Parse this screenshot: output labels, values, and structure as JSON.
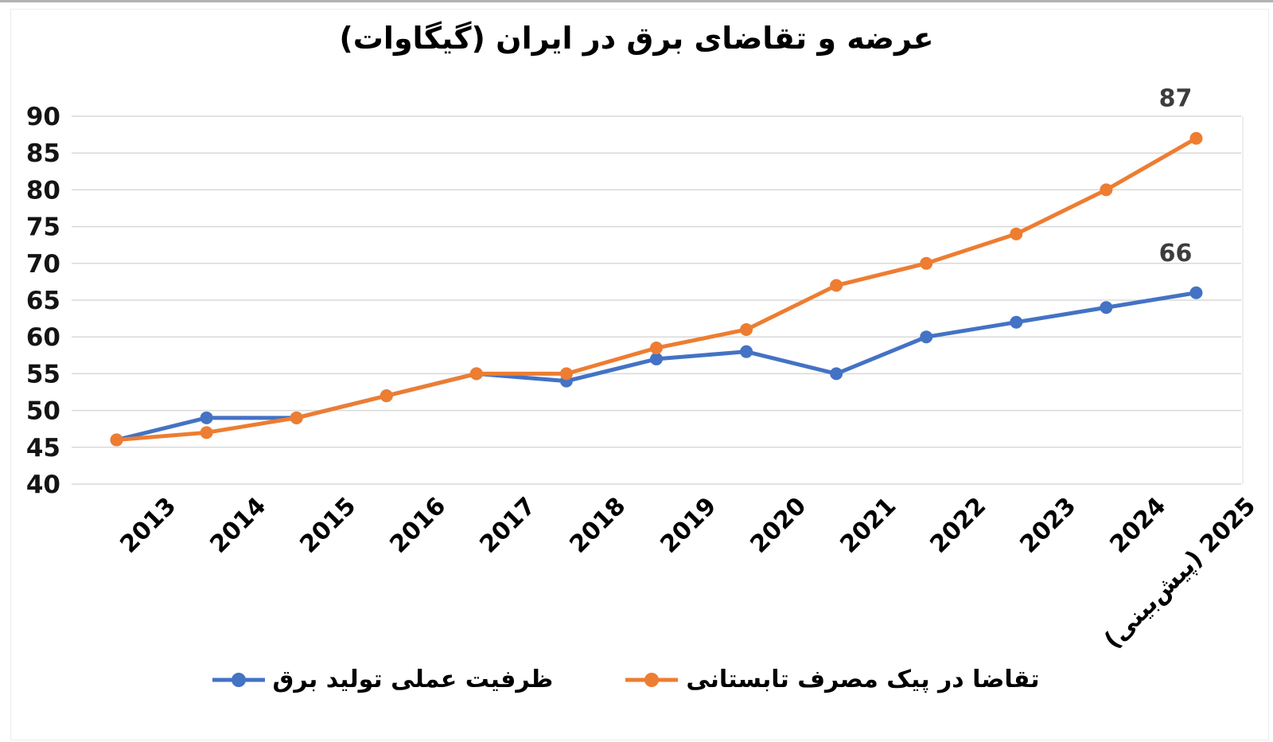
{
  "title": "عرضه و تقاضای برق در ایران (گیگاوات)",
  "chart_data": {
    "type": "line",
    "categories": [
      "2013",
      "2014",
      "2015",
      "2016",
      "2017",
      "2018",
      "2019",
      "2020",
      "2021",
      "2022",
      "2023",
      "2024",
      "2025 (پیش‌بینی)"
    ],
    "series": [
      {
        "name": "ظرفیت عملی تولید برق",
        "color": "#4472C4",
        "values": [
          46,
          49,
          49,
          52,
          55,
          54,
          57,
          58,
          55,
          60,
          62,
          64,
          66
        ],
        "end_label": "66"
      },
      {
        "name": "تقاضا در پیک مصرف تابستانی",
        "color": "#ED7D31",
        "values": [
          46,
          47,
          49,
          52,
          55,
          55,
          58.5,
          61,
          67,
          70,
          74,
          80,
          87
        ],
        "end_label": "87"
      }
    ],
    "ylim": [
      40,
      90
    ],
    "ytick_step": 5,
    "yticks": [
      40,
      45,
      50,
      55,
      60,
      65,
      70,
      75,
      80,
      85,
      90
    ],
    "grid": true,
    "gridline_color": "#D9D9D9",
    "legend_position": "bottom",
    "x_label_rotation_deg": -45
  }
}
